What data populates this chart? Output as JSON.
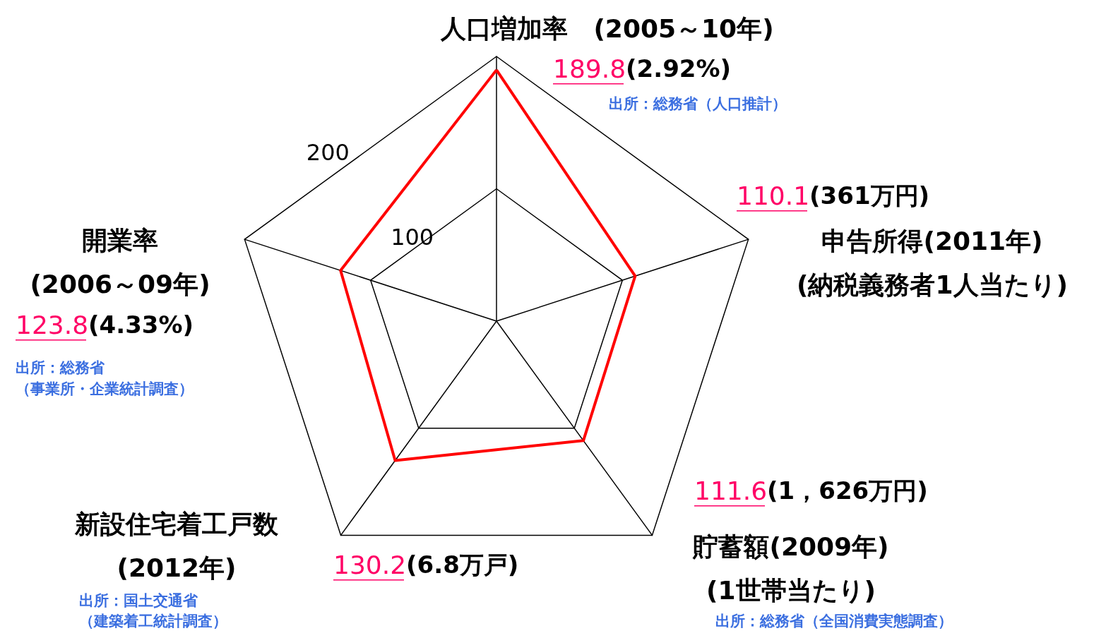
{
  "chart_data": {
    "type": "radar",
    "categories": [
      "人口増加率　(2005～10年)",
      "申告所得(2011年)\n(納税義務者1人当たり)",
      "貯蓄額(2009年)\n(1世帯当たり)",
      "新設住宅着工戸数\n(2012年)",
      "開業率\n(2006～09年)"
    ],
    "series": [
      {
        "color": "#ff0000",
        "values": [
          189.8,
          110.1,
          111.6,
          130.2,
          123.8
        ]
      }
    ],
    "ylim": [
      0,
      200
    ],
    "yticks": [
      100,
      200
    ],
    "marker": "none",
    "line_style": "solid",
    "annotations": [
      "189.8",
      "110.1",
      "111.6",
      "130.2",
      "123.8",
      "(2.92%)",
      "(361万円)",
      "(1，626万円)",
      "(6.8万戸)",
      "(4.33%)",
      "出所：総務省（人口推計）",
      "出所：総務省（全国消費実態調査）",
      "出所：国土交通省",
      "（建築着工統計調査）",
      "出所：総務省",
      "（事業所・企業統計調査）"
    ]
  }
}
